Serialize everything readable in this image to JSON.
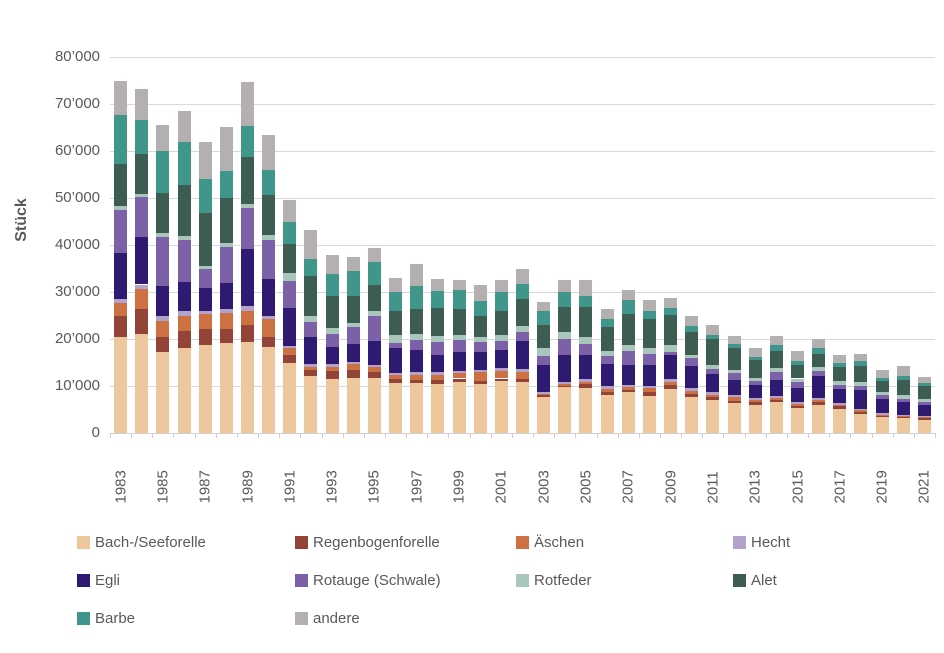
{
  "chart_data": {
    "type": "bar",
    "stacked": true,
    "title": "",
    "ylabel": "Stück",
    "xlabel": "",
    "ylim": [
      0,
      80000
    ],
    "ytick_step": 10000,
    "ytick_labels": [
      "0",
      "10’000",
      "20’000",
      "30’000",
      "40’000",
      "50’000",
      "60’000",
      "70’000",
      "80’000"
    ],
    "grid": true,
    "legend_position": "bottom",
    "categories": [
      1983,
      1984,
      1985,
      1986,
      1987,
      1988,
      1989,
      1990,
      1991,
      1992,
      1993,
      1994,
      1995,
      1996,
      1997,
      1998,
      1999,
      2000,
      2001,
      2002,
      2003,
      2004,
      2005,
      2006,
      2007,
      2008,
      2009,
      2010,
      2011,
      2012,
      2013,
      2014,
      2015,
      2016,
      2017,
      2018,
      2019,
      2020,
      2021
    ],
    "labeled_categories": [
      1983,
      1985,
      1987,
      1989,
      1991,
      1993,
      1995,
      1997,
      1999,
      2001,
      2003,
      2005,
      2007,
      2009,
      2011,
      2013,
      2015,
      2017,
      2019,
      2021
    ],
    "series": [
      {
        "name": "Bach-/Seeforelle",
        "color": "#eec79d",
        "values": [
          20400,
          21100,
          17300,
          18100,
          18800,
          19200,
          19400,
          18300,
          14800,
          12200,
          11400,
          11800,
          11600,
          10700,
          10600,
          10400,
          10900,
          10500,
          11100,
          10900,
          7600,
          9700,
          9500,
          8100,
          8700,
          7800,
          9400,
          7600,
          7100,
          6400,
          6000,
          6600,
          5300,
          6000,
          5200,
          4100,
          3400,
          3200,
          2700
        ]
      },
      {
        "name": "Regenbogenforelle",
        "color": "#914437",
        "values": [
          4600,
          5300,
          3100,
          3700,
          3400,
          3000,
          3500,
          2100,
          1800,
          1200,
          1800,
          1600,
          1300,
          700,
          700,
          900,
          700,
          600,
          500,
          600,
          400,
          300,
          900,
          700,
          500,
          1000,
          800,
          700,
          500,
          500,
          600,
          500,
          500,
          600,
          500,
          400,
          300,
          200,
          400
        ]
      },
      {
        "name": "Äschen",
        "color": "#cd7042",
        "values": [
          2600,
          4200,
          3500,
          3200,
          3100,
          3300,
          3100,
          3900,
          1400,
          700,
          900,
          1300,
          1100,
          1000,
          1100,
          1100,
          1100,
          1800,
          1500,
          1400,
          300,
          400,
          400,
          600,
          500,
          700,
          700,
          700,
          500,
          700,
          500,
          300,
          400,
          500,
          300,
          300,
          200,
          300,
          300
        ]
      },
      {
        "name": "Hecht",
        "color": "#b3a2cb",
        "values": [
          1000,
          1000,
          1100,
          1000,
          700,
          900,
          1100,
          700,
          500,
          500,
          500,
          500,
          500,
          400,
          500,
          500,
          500,
          600,
          700,
          700,
          400,
          500,
          600,
          500,
          500,
          400,
          600,
          500,
          600,
          400,
          300,
          400,
          400,
          300,
          400,
          400,
          400,
          200,
          200
        ]
      },
      {
        "name": "Egli",
        "color": "#2e1a70",
        "values": [
          9600,
          10000,
          6300,
          6100,
          4900,
          5600,
          12100,
          7700,
          8200,
          5800,
          3700,
          3800,
          5000,
          5200,
          4700,
          3700,
          4100,
          3800,
          3800,
          5900,
          5800,
          5800,
          5200,
          4700,
          4300,
          4600,
          5100,
          4800,
          3800,
          3300,
          2800,
          3500,
          2900,
          4800,
          3000,
          4000,
          3000,
          2700,
          2400
        ]
      },
      {
        "name": "Rotauge (Schwale)",
        "color": "#7c60a8",
        "values": [
          9300,
          8600,
          10300,
          8900,
          3900,
          7500,
          8600,
          8400,
          5700,
          3300,
          2800,
          3500,
          5500,
          1200,
          2100,
          2800,
          2400,
          2100,
          1900,
          2000,
          1900,
          3400,
          2300,
          1800,
          2900,
          2400,
          700,
          1600,
          1100,
          1400,
          900,
          1600,
          1300,
          1000,
          800,
          900,
          700,
          600,
          600
        ]
      },
      {
        "name": "Rotfeder",
        "color": "#a9c6bd",
        "values": [
          900,
          700,
          900,
          1000,
          700,
          900,
          900,
          1100,
          1700,
          1300,
          1200,
          900,
          1000,
          1600,
          1400,
          1200,
          1200,
          1000,
          1300,
          1200,
          1700,
          1400,
          1500,
          1000,
          1300,
          1200,
          1400,
          800,
          900,
          700,
          700,
          1000,
          800,
          900,
          900,
          800,
          700,
          800,
          600
        ]
      },
      {
        "name": "Alet",
        "color": "#3d5c52",
        "values": [
          8800,
          8500,
          8600,
          10800,
          11400,
          9600,
          10100,
          8400,
          6100,
          8500,
          6800,
          5800,
          5400,
          5200,
          5300,
          5900,
          5500,
          4600,
          5200,
          5800,
          4900,
          5400,
          6500,
          5100,
          6600,
          6200,
          6400,
          4800,
          5400,
          4600,
          3700,
          3500,
          2900,
          2800,
          3000,
          3400,
          2400,
          3300,
          2800
        ]
      },
      {
        "name": "Barbe",
        "color": "#41968c",
        "values": [
          10500,
          7300,
          9000,
          9200,
          7200,
          5700,
          6500,
          5400,
          4600,
          3600,
          4800,
          5300,
          5000,
          4000,
          4900,
          3700,
          4100,
          3100,
          4000,
          3300,
          3000,
          3100,
          2300,
          1800,
          3000,
          1700,
          1400,
          1200,
          1000,
          900,
          700,
          1300,
          900,
          1100,
          900,
          1000,
          700,
          800,
          700
        ]
      },
      {
        "name": "andere",
        "color": "#b4b0b1",
        "values": [
          7100,
          6500,
          5400,
          6600,
          7900,
          9400,
          9300,
          7400,
          4700,
          6100,
          3900,
          2900,
          3000,
          2900,
          4700,
          2500,
          2000,
          3400,
          2500,
          3000,
          1900,
          2500,
          3300,
          2100,
          2100,
          2400,
          2200,
          2300,
          2000,
          1700,
          1900,
          1900,
          2100,
          1900,
          1700,
          1600,
          1700,
          2100,
          1300
        ]
      }
    ]
  },
  "layout_colors": {
    "gridline": "#d9d9d9",
    "axis_text": "#595959",
    "background": "#ffffff"
  }
}
